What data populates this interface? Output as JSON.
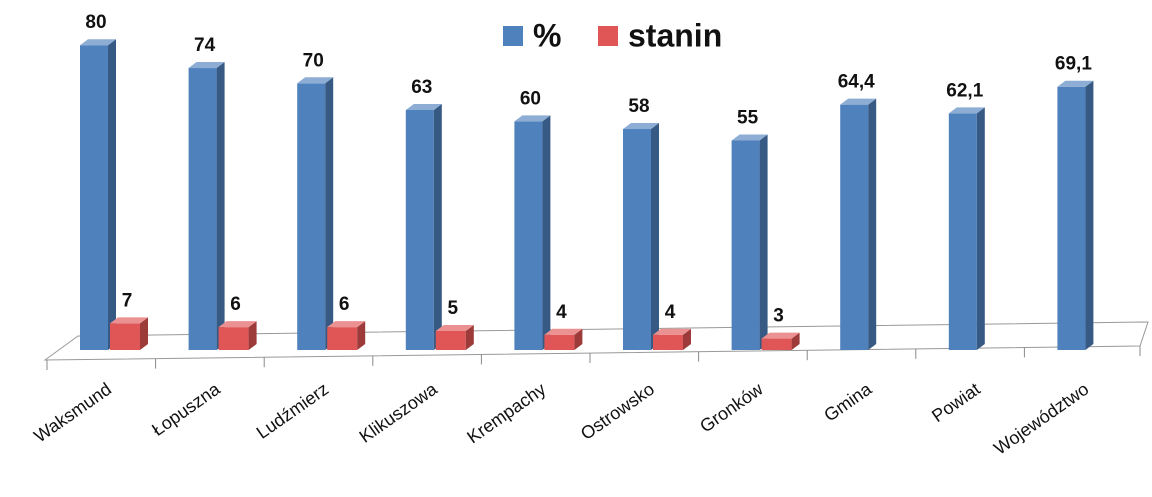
{
  "chart_data": {
    "type": "bar3d",
    "categories": [
      "Waksmund",
      "Łopuszna",
      "Ludźmierz",
      "Klikuszowa",
      "Krempachy",
      "Ostrowsko",
      "Gronków",
      "Gmina",
      "Powiat",
      "Województwo"
    ],
    "series": [
      {
        "name": "%",
        "color": "#4f81bd",
        "values": [
          80,
          74,
          70,
          63,
          60,
          58,
          55,
          64.4,
          62.1,
          69.1
        ],
        "value_labels": [
          "80",
          "74",
          "70",
          "63",
          "60",
          "58",
          "55",
          "64,4",
          "62,1",
          "69,1"
        ]
      },
      {
        "name": "stanin",
        "color": "#e05555",
        "values": [
          7,
          6,
          6,
          5,
          4,
          4,
          3,
          null,
          null,
          null
        ]
      }
    ],
    "legend": "top"
  }
}
